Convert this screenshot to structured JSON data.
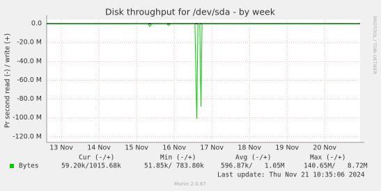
{
  "chart_data": {
    "type": "line",
    "title": "Disk throughput for /dev/sda - by week",
    "y_label": "Pr second read (-) / write (+)",
    "side_label": "RRDTOOL / TOBI OETIKER",
    "xlim": [
      12.61,
      20.94
    ],
    "xticks": [
      {
        "value": 13,
        "label": "13 Nov"
      },
      {
        "value": 14,
        "label": "14 Nov"
      },
      {
        "value": 15,
        "label": "15 Nov"
      },
      {
        "value": 16,
        "label": "16 Nov"
      },
      {
        "value": 17,
        "label": "17 Nov"
      },
      {
        "value": 18,
        "label": "18 Nov"
      },
      {
        "value": 19,
        "label": "19 Nov"
      },
      {
        "value": 20,
        "label": "20 Nov"
      }
    ],
    "ylim": [
      -126000000,
      4500000
    ],
    "yticks": [
      {
        "value": 0,
        "label": "0.0"
      },
      {
        "value": -20000000,
        "label": "-20.0 M"
      },
      {
        "value": -40000000,
        "label": "-40.0 M"
      },
      {
        "value": -60000000,
        "label": "-60.0 M"
      },
      {
        "value": -80000000,
        "label": "-80.0 M"
      },
      {
        "value": -100000000,
        "label": "-100.0 M"
      },
      {
        "value": -120000000,
        "label": "-120.0 M"
      }
    ],
    "grid": true,
    "series": [
      {
        "name": "Bytes",
        "color": "#00cc00",
        "x": [
          12.62,
          13.5,
          14.5,
          15.3,
          15.35,
          15.4,
          15.8,
          15.85,
          15.9,
          16.55,
          16.6,
          16.63,
          16.68,
          16.71,
          16.74,
          17.5,
          18.5,
          19.5,
          20.5,
          20.93
        ],
        "values": [
          -300000,
          -200000,
          -300000,
          -200000,
          -3000000,
          -300000,
          -200000,
          -2000000,
          -300000,
          -300000,
          -101000000,
          -400000,
          -300000,
          -88000000,
          -300000,
          -200000,
          -300000,
          -200000,
          -300000,
          -200000
        ]
      }
    ],
    "legend_table": {
      "headers": [
        "Cur (-/+)",
        "Min (-/+)",
        "Avg (-/+)",
        "Max (-/+)"
      ],
      "row": [
        "59.20k/1015.68k",
        "51.85k/ 783.80k",
        "596.87k/   1.05M",
        "140.65M/   8.72M"
      ]
    },
    "last_update": "Last update: Thu Nov 21 10:35:06 2024",
    "footer": "Munin 2.0.67"
  }
}
